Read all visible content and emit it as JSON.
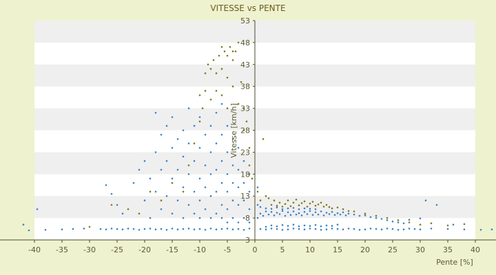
{
  "chart_data": {
    "type": "scatter",
    "title": "VITESSE vs PENTE",
    "xlabel": "Pente [%]",
    "ylabel": "Vitesse [km/h]",
    "xlim": [
      -40,
      40
    ],
    "ylim": [
      3,
      53
    ],
    "x_ticks": [
      -40,
      -35,
      -30,
      -25,
      -20,
      -15,
      -10,
      -5,
      0,
      5,
      10,
      15,
      20,
      25,
      30,
      35,
      40
    ],
    "y_ticks": [
      3,
      8,
      13,
      18,
      23,
      28,
      33,
      38,
      43,
      48,
      53
    ],
    "grid": "horizontal alternating bands",
    "colors": {
      "background": "#eef2cf",
      "band_light": "#ffffff",
      "band_dark": "#efefef",
      "series_blue": "#3b84c6",
      "series_olive": "#7d7a16",
      "axis": "#4a4a2a"
    },
    "series": [
      {
        "color": "#3b84c6",
        "points": [
          [
            -42,
            6.5
          ],
          [
            -41,
            5.2
          ],
          [
            -39.5,
            10
          ],
          [
            -38,
            5.3
          ],
          [
            -35,
            5.4
          ],
          [
            -33,
            5.5
          ],
          [
            -31,
            5.6
          ],
          [
            -28,
            5.5
          ],
          [
            -27,
            5.4
          ],
          [
            -26,
            5.6
          ],
          [
            -25,
            5.5
          ],
          [
            -24,
            5.4
          ],
          [
            -23,
            5.6
          ],
          [
            -22,
            5.5
          ],
          [
            -21,
            5.3
          ],
          [
            -20,
            5.5
          ],
          [
            -19,
            5.6
          ],
          [
            -18,
            5.4
          ],
          [
            -17,
            5.5
          ],
          [
            -16,
            5.3
          ],
          [
            -15,
            5.6
          ],
          [
            -14,
            5.4
          ],
          [
            -13,
            5.5
          ],
          [
            -12,
            5.6
          ],
          [
            -11,
            5.4
          ],
          [
            -10,
            5.5
          ],
          [
            -9,
            5.3
          ],
          [
            -8,
            5.6
          ],
          [
            -7,
            5.4
          ],
          [
            -6,
            5.5
          ],
          [
            -5,
            5.6
          ],
          [
            -4,
            5.4
          ],
          [
            -3,
            5.5
          ],
          [
            -2,
            5.3
          ],
          [
            -1,
            5.6
          ],
          [
            1,
            5.5
          ],
          [
            2,
            5.4
          ],
          [
            3,
            5.6
          ],
          [
            4,
            5.5
          ],
          [
            5,
            5.3
          ],
          [
            6,
            5.4
          ],
          [
            7,
            5.6
          ],
          [
            8,
            5.5
          ],
          [
            9,
            5.4
          ],
          [
            10,
            5.6
          ],
          [
            11,
            5.5
          ],
          [
            12,
            5.3
          ],
          [
            13,
            5.4
          ],
          [
            14,
            5.6
          ],
          [
            15,
            5.5
          ],
          [
            16,
            5.4
          ],
          [
            17,
            5.6
          ],
          [
            18,
            5.5
          ],
          [
            19,
            5.3
          ],
          [
            20,
            5.4
          ],
          [
            21,
            5.6
          ],
          [
            22,
            5.5
          ],
          [
            23,
            5.4
          ],
          [
            24,
            5.6
          ],
          [
            25,
            5.5
          ],
          [
            26,
            5.3
          ],
          [
            27,
            5.4
          ],
          [
            28,
            5.6
          ],
          [
            29,
            5.5
          ],
          [
            30,
            5.4
          ],
          [
            32,
            5.6
          ],
          [
            35,
            5.5
          ],
          [
            38,
            5.4
          ],
          [
            41,
            5.3
          ],
          [
            43,
            5.4
          ],
          [
            -27,
            15.5
          ],
          [
            -26,
            13.5
          ],
          [
            -25,
            11
          ],
          [
            -24,
            9
          ],
          [
            -22,
            16
          ],
          [
            -21,
            19
          ],
          [
            -20,
            12
          ],
          [
            -20,
            21
          ],
          [
            -19,
            8
          ],
          [
            -19,
            17
          ],
          [
            -18,
            14
          ],
          [
            -18,
            23
          ],
          [
            -18,
            32
          ],
          [
            -17,
            10
          ],
          [
            -17,
            19
          ],
          [
            -17,
            27
          ],
          [
            -16,
            13
          ],
          [
            -16,
            21
          ],
          [
            -16,
            29
          ],
          [
            -15,
            9
          ],
          [
            -15,
            17
          ],
          [
            -15,
            24
          ],
          [
            -15,
            31
          ],
          [
            -14,
            12
          ],
          [
            -14,
            19
          ],
          [
            -14,
            26
          ],
          [
            -13,
            8
          ],
          [
            -13,
            15
          ],
          [
            -13,
            22
          ],
          [
            -13,
            28
          ],
          [
            -12,
            11
          ],
          [
            -12,
            18
          ],
          [
            -12,
            25
          ],
          [
            -12,
            33
          ],
          [
            -11,
            9
          ],
          [
            -11,
            14
          ],
          [
            -11,
            21
          ],
          [
            -11,
            29
          ],
          [
            -10,
            8
          ],
          [
            -10,
            12
          ],
          [
            -10,
            17
          ],
          [
            -10,
            24
          ],
          [
            -10,
            31
          ],
          [
            -9,
            10
          ],
          [
            -9,
            15
          ],
          [
            -9,
            20
          ],
          [
            -9,
            27
          ],
          [
            -8,
            8
          ],
          [
            -8,
            13
          ],
          [
            -8,
            18
          ],
          [
            -8,
            23
          ],
          [
            -8,
            29
          ],
          [
            -7,
            9
          ],
          [
            -7,
            14
          ],
          [
            -7,
            19
          ],
          [
            -7,
            25
          ],
          [
            -7,
            32
          ],
          [
            -6,
            8
          ],
          [
            -6,
            11
          ],
          [
            -6,
            16
          ],
          [
            -6,
            21
          ],
          [
            -6,
            27
          ],
          [
            -6,
            34
          ],
          [
            -5,
            7
          ],
          [
            -5,
            10
          ],
          [
            -5,
            14
          ],
          [
            -5,
            18
          ],
          [
            -5,
            23
          ],
          [
            -5,
            29
          ],
          [
            -4,
            8
          ],
          [
            -4,
            12
          ],
          [
            -4,
            16
          ],
          [
            -4,
            20
          ],
          [
            -4,
            26
          ],
          [
            -3,
            7
          ],
          [
            -3,
            11
          ],
          [
            -3,
            15
          ],
          [
            -3,
            19
          ],
          [
            -3,
            24
          ],
          [
            -2,
            8
          ],
          [
            -2,
            12
          ],
          [
            -2,
            16
          ],
          [
            -2,
            21
          ],
          [
            -1,
            7
          ],
          [
            -1,
            10
          ],
          [
            -1,
            14
          ],
          [
            -1,
            18
          ],
          [
            0.5,
            8
          ],
          [
            0.5,
            11
          ],
          [
            0.5,
            15
          ],
          [
            1,
            9
          ],
          [
            1,
            10.5
          ],
          [
            1.5,
            8.5
          ],
          [
            2,
            9.5
          ],
          [
            2,
            10.2
          ],
          [
            2.5,
            8.8
          ],
          [
            3,
            9.4
          ],
          [
            3,
            10.1
          ],
          [
            3.5,
            8.6
          ],
          [
            4,
            9.2
          ],
          [
            4,
            10.4
          ],
          [
            4.5,
            8.9
          ],
          [
            5,
            9.6
          ],
          [
            5,
            10
          ],
          [
            5.5,
            8.5
          ],
          [
            6,
            9.3
          ],
          [
            6,
            10.2
          ],
          [
            6.5,
            8.7
          ],
          [
            7,
            9.5
          ],
          [
            7,
            10.3
          ],
          [
            7.5,
            8.8
          ],
          [
            8,
            9.1
          ],
          [
            8,
            10
          ],
          [
            8.5,
            8.6
          ],
          [
            9,
            9.4
          ],
          [
            9,
            10.2
          ],
          [
            9.5,
            8.9
          ],
          [
            10,
            9.6
          ],
          [
            10,
            10.1
          ],
          [
            10.5,
            8.7
          ],
          [
            11,
            9.3
          ],
          [
            11,
            10
          ],
          [
            11.5,
            8.8
          ],
          [
            12,
            9.5
          ],
          [
            12.5,
            8.6
          ],
          [
            13,
            9.2
          ],
          [
            13.5,
            8.9
          ],
          [
            14,
            9.4
          ],
          [
            14.5,
            8.7
          ],
          [
            15,
            9.1
          ],
          [
            15.5,
            8.8
          ],
          [
            16,
            9.3
          ],
          [
            16.5,
            8.6
          ],
          [
            17,
            9
          ],
          [
            18,
            8.8
          ],
          [
            19,
            8.5
          ],
          [
            20,
            8.6
          ],
          [
            21,
            8.2
          ],
          [
            22,
            8
          ],
          [
            23,
            7.8
          ],
          [
            24,
            7.5
          ],
          [
            25,
            7.2
          ],
          [
            26,
            7
          ],
          [
            27,
            6.8
          ],
          [
            28,
            7.6
          ],
          [
            30,
            7.9
          ],
          [
            31,
            12
          ],
          [
            33,
            11
          ],
          [
            36,
            6.5
          ],
          [
            2,
            6
          ],
          [
            3,
            6.3
          ],
          [
            4,
            6.1
          ],
          [
            5,
            6.4
          ],
          [
            6,
            6.2
          ],
          [
            7,
            6.5
          ],
          [
            8,
            6.1
          ],
          [
            9,
            6.3
          ],
          [
            10,
            6.2
          ],
          [
            11,
            6.4
          ],
          [
            12,
            6.1
          ],
          [
            13,
            6.3
          ],
          [
            14,
            6.2
          ],
          [
            15,
            6.5
          ]
        ]
      },
      {
        "color": "#7d7a16",
        "points": [
          [
            -30,
            6
          ],
          [
            -26,
            11
          ],
          [
            -23,
            10
          ],
          [
            -21,
            9
          ],
          [
            -19,
            14
          ],
          [
            -17,
            12
          ],
          [
            -15,
            16
          ],
          [
            -13,
            14
          ],
          [
            -12,
            20
          ],
          [
            -11,
            25
          ],
          [
            -10,
            36
          ],
          [
            -10,
            30
          ],
          [
            -9.5,
            33
          ],
          [
            -9,
            41
          ],
          [
            -9,
            37
          ],
          [
            -8.5,
            43
          ],
          [
            -8,
            42
          ],
          [
            -8,
            35
          ],
          [
            -7.5,
            44
          ],
          [
            -7,
            41
          ],
          [
            -7,
            37
          ],
          [
            -6.5,
            45
          ],
          [
            -6,
            47
          ],
          [
            -6,
            42
          ],
          [
            -6,
            36
          ],
          [
            -5.5,
            46
          ],
          [
            -5,
            45
          ],
          [
            -5,
            40
          ],
          [
            -5,
            33
          ],
          [
            -4.5,
            47
          ],
          [
            -4,
            46
          ],
          [
            -4,
            44
          ],
          [
            -4,
            38
          ],
          [
            -3.5,
            46
          ],
          [
            -3,
            48
          ],
          [
            -3,
            34
          ],
          [
            -2.5,
            39
          ],
          [
            -2,
            33
          ],
          [
            -2,
            28
          ],
          [
            -1.5,
            30
          ],
          [
            -1,
            24
          ],
          [
            -1,
            20
          ],
          [
            -0.5,
            17
          ],
          [
            0.5,
            14
          ],
          [
            1,
            12
          ],
          [
            1.5,
            26
          ],
          [
            2,
            13
          ],
          [
            2.5,
            12.5
          ],
          [
            3,
            11
          ],
          [
            3.5,
            12
          ],
          [
            4,
            10.8
          ],
          [
            4.5,
            11.5
          ],
          [
            5,
            10.6
          ],
          [
            5.5,
            11.2
          ],
          [
            6,
            12
          ],
          [
            6.5,
            10.7
          ],
          [
            7,
            11.5
          ],
          [
            7.5,
            12.2
          ],
          [
            8,
            10.9
          ],
          [
            8.5,
            11.4
          ],
          [
            9,
            11.8
          ],
          [
            9.5,
            10.6
          ],
          [
            10,
            11.3
          ],
          [
            10.5,
            11.7
          ],
          [
            11,
            10.8
          ],
          [
            11.5,
            11.1
          ],
          [
            12,
            11.5
          ],
          [
            12.5,
            10.6
          ],
          [
            13,
            11
          ],
          [
            13.5,
            10.5
          ],
          [
            14,
            10.2
          ],
          [
            15,
            10.4
          ],
          [
            16,
            10
          ],
          [
            17,
            9.6
          ],
          [
            18,
            9.5
          ],
          [
            20,
            9
          ],
          [
            22,
            8.5
          ],
          [
            24,
            8
          ],
          [
            26,
            7.5
          ],
          [
            28,
            7
          ],
          [
            30,
            6.5
          ],
          [
            32,
            6.8
          ],
          [
            35,
            6.3
          ],
          [
            38,
            6.6
          ]
        ]
      }
    ]
  }
}
